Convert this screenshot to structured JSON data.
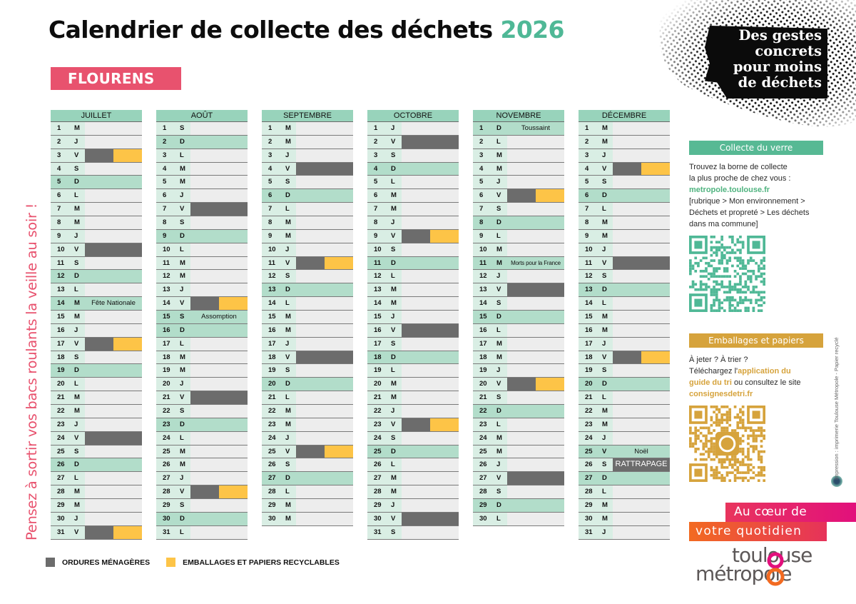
{
  "title": {
    "text": "Calendrier de collecte des déchets",
    "year": "2026"
  },
  "commune": "FLOURENS",
  "slogan": {
    "lines": [
      "Des gestes",
      "concrets",
      "pour moins",
      "de déchets"
    ]
  },
  "reminder": "Pensez à sortir vos bacs roulants la veille au soir !",
  "colors": {
    "ordures": "#6c6c6c",
    "emballages": "#fdc447",
    "accent": "#4fb896",
    "pink": "#e8526e",
    "header": "#98d3bb"
  },
  "legend": {
    "ordures": "ORDURES MÉNAGÈRES",
    "emballages": "EMBALLAGES ET PAPIERS RECYCLABLES"
  },
  "months": [
    {
      "name": "JUILLET",
      "days": [
        {
          "d": "1",
          "w": "M"
        },
        {
          "d": "2",
          "w": "J"
        },
        {
          "d": "3",
          "w": "V",
          "c": "both"
        },
        {
          "d": "4",
          "w": "S"
        },
        {
          "d": "5",
          "w": "D"
        },
        {
          "d": "6",
          "w": "L"
        },
        {
          "d": "7",
          "w": "M"
        },
        {
          "d": "8",
          "w": "M"
        },
        {
          "d": "9",
          "w": "J"
        },
        {
          "d": "10",
          "w": "V",
          "c": "om"
        },
        {
          "d": "11",
          "w": "S"
        },
        {
          "d": "12",
          "w": "D"
        },
        {
          "d": "13",
          "w": "L"
        },
        {
          "d": "14",
          "w": "M",
          "h": "Fête Nationale"
        },
        {
          "d": "15",
          "w": "M"
        },
        {
          "d": "16",
          "w": "J"
        },
        {
          "d": "17",
          "w": "V",
          "c": "both"
        },
        {
          "d": "18",
          "w": "S"
        },
        {
          "d": "19",
          "w": "D"
        },
        {
          "d": "20",
          "w": "L"
        },
        {
          "d": "21",
          "w": "M"
        },
        {
          "d": "22",
          "w": "M"
        },
        {
          "d": "23",
          "w": "J"
        },
        {
          "d": "24",
          "w": "V",
          "c": "om"
        },
        {
          "d": "25",
          "w": "S"
        },
        {
          "d": "26",
          "w": "D"
        },
        {
          "d": "27",
          "w": "L"
        },
        {
          "d": "28",
          "w": "M"
        },
        {
          "d": "29",
          "w": "M"
        },
        {
          "d": "30",
          "w": "J"
        },
        {
          "d": "31",
          "w": "V",
          "c": "both"
        }
      ]
    },
    {
      "name": "AOÛT",
      "days": [
        {
          "d": "1",
          "w": "S"
        },
        {
          "d": "2",
          "w": "D"
        },
        {
          "d": "3",
          "w": "L"
        },
        {
          "d": "4",
          "w": "M"
        },
        {
          "d": "5",
          "w": "M"
        },
        {
          "d": "6",
          "w": "J"
        },
        {
          "d": "7",
          "w": "V",
          "c": "om"
        },
        {
          "d": "8",
          "w": "S"
        },
        {
          "d": "9",
          "w": "D"
        },
        {
          "d": "10",
          "w": "L"
        },
        {
          "d": "11",
          "w": "M"
        },
        {
          "d": "12",
          "w": "M"
        },
        {
          "d": "13",
          "w": "J"
        },
        {
          "d": "14",
          "w": "V",
          "c": "both"
        },
        {
          "d": "15",
          "w": "S",
          "h": "Assomption"
        },
        {
          "d": "16",
          "w": "D"
        },
        {
          "d": "17",
          "w": "L"
        },
        {
          "d": "18",
          "w": "M"
        },
        {
          "d": "19",
          "w": "M"
        },
        {
          "d": "20",
          "w": "J"
        },
        {
          "d": "21",
          "w": "V",
          "c": "om"
        },
        {
          "d": "22",
          "w": "S"
        },
        {
          "d": "23",
          "w": "D"
        },
        {
          "d": "24",
          "w": "L"
        },
        {
          "d": "25",
          "w": "M"
        },
        {
          "d": "26",
          "w": "M"
        },
        {
          "d": "27",
          "w": "J"
        },
        {
          "d": "28",
          "w": "V",
          "c": "both"
        },
        {
          "d": "29",
          "w": "S"
        },
        {
          "d": "30",
          "w": "D"
        },
        {
          "d": "31",
          "w": "L"
        }
      ]
    },
    {
      "name": "SEPTEMBRE",
      "days": [
        {
          "d": "1",
          "w": "M"
        },
        {
          "d": "2",
          "w": "M"
        },
        {
          "d": "3",
          "w": "J"
        },
        {
          "d": "4",
          "w": "V",
          "c": "om"
        },
        {
          "d": "5",
          "w": "S"
        },
        {
          "d": "6",
          "w": "D"
        },
        {
          "d": "7",
          "w": "L"
        },
        {
          "d": "8",
          "w": "M"
        },
        {
          "d": "9",
          "w": "M"
        },
        {
          "d": "10",
          "w": "J"
        },
        {
          "d": "11",
          "w": "V",
          "c": "both"
        },
        {
          "d": "12",
          "w": "S"
        },
        {
          "d": "13",
          "w": "D"
        },
        {
          "d": "14",
          "w": "L"
        },
        {
          "d": "15",
          "w": "M"
        },
        {
          "d": "16",
          "w": "M"
        },
        {
          "d": "17",
          "w": "J"
        },
        {
          "d": "18",
          "w": "V",
          "c": "om"
        },
        {
          "d": "19",
          "w": "S"
        },
        {
          "d": "20",
          "w": "D"
        },
        {
          "d": "21",
          "w": "L"
        },
        {
          "d": "22",
          "w": "M"
        },
        {
          "d": "23",
          "w": "M"
        },
        {
          "d": "24",
          "w": "J"
        },
        {
          "d": "25",
          "w": "V",
          "c": "both"
        },
        {
          "d": "26",
          "w": "S"
        },
        {
          "d": "27",
          "w": "D"
        },
        {
          "d": "28",
          "w": "L"
        },
        {
          "d": "29",
          "w": "M"
        },
        {
          "d": "30",
          "w": "M"
        }
      ]
    },
    {
      "name": "OCTOBRE",
      "days": [
        {
          "d": "1",
          "w": "J"
        },
        {
          "d": "2",
          "w": "V",
          "c": "om"
        },
        {
          "d": "3",
          "w": "S"
        },
        {
          "d": "4",
          "w": "D"
        },
        {
          "d": "5",
          "w": "L"
        },
        {
          "d": "6",
          "w": "M"
        },
        {
          "d": "7",
          "w": "M"
        },
        {
          "d": "8",
          "w": "J"
        },
        {
          "d": "9",
          "w": "V",
          "c": "both"
        },
        {
          "d": "10",
          "w": "S"
        },
        {
          "d": "11",
          "w": "D"
        },
        {
          "d": "12",
          "w": "L"
        },
        {
          "d": "13",
          "w": "M"
        },
        {
          "d": "14",
          "w": "M"
        },
        {
          "d": "15",
          "w": "J"
        },
        {
          "d": "16",
          "w": "V",
          "c": "om"
        },
        {
          "d": "17",
          "w": "S"
        },
        {
          "d": "18",
          "w": "D"
        },
        {
          "d": "19",
          "w": "L"
        },
        {
          "d": "20",
          "w": "M"
        },
        {
          "d": "21",
          "w": "M"
        },
        {
          "d": "22",
          "w": "J"
        },
        {
          "d": "23",
          "w": "V",
          "c": "both"
        },
        {
          "d": "24",
          "w": "S"
        },
        {
          "d": "25",
          "w": "D"
        },
        {
          "d": "26",
          "w": "L"
        },
        {
          "d": "27",
          "w": "M"
        },
        {
          "d": "28",
          "w": "M"
        },
        {
          "d": "29",
          "w": "J"
        },
        {
          "d": "30",
          "w": "V",
          "c": "om"
        },
        {
          "d": "31",
          "w": "S"
        }
      ]
    },
    {
      "name": "NOVEMBRE",
      "days": [
        {
          "d": "1",
          "w": "D",
          "h": "Toussaint"
        },
        {
          "d": "2",
          "w": "L"
        },
        {
          "d": "3",
          "w": "M"
        },
        {
          "d": "4",
          "w": "M"
        },
        {
          "d": "5",
          "w": "J"
        },
        {
          "d": "6",
          "w": "V",
          "c": "both"
        },
        {
          "d": "7",
          "w": "S"
        },
        {
          "d": "8",
          "w": "D"
        },
        {
          "d": "9",
          "w": "L"
        },
        {
          "d": "10",
          "w": "M"
        },
        {
          "d": "11",
          "w": "M",
          "h": "Morts pour la France",
          "small": true
        },
        {
          "d": "12",
          "w": "J"
        },
        {
          "d": "13",
          "w": "V",
          "c": "om"
        },
        {
          "d": "14",
          "w": "S"
        },
        {
          "d": "15",
          "w": "D"
        },
        {
          "d": "16",
          "w": "L"
        },
        {
          "d": "17",
          "w": "M"
        },
        {
          "d": "18",
          "w": "M"
        },
        {
          "d": "19",
          "w": "J"
        },
        {
          "d": "20",
          "w": "V",
          "c": "both"
        },
        {
          "d": "21",
          "w": "S"
        },
        {
          "d": "22",
          "w": "D"
        },
        {
          "d": "23",
          "w": "L"
        },
        {
          "d": "24",
          "w": "M"
        },
        {
          "d": "25",
          "w": "M"
        },
        {
          "d": "26",
          "w": "J"
        },
        {
          "d": "27",
          "w": "V",
          "c": "om"
        },
        {
          "d": "28",
          "w": "S"
        },
        {
          "d": "29",
          "w": "D"
        },
        {
          "d": "30",
          "w": "L"
        }
      ]
    },
    {
      "name": "DÉCEMBRE",
      "days": [
        {
          "d": "1",
          "w": "M"
        },
        {
          "d": "2",
          "w": "M"
        },
        {
          "d": "3",
          "w": "J"
        },
        {
          "d": "4",
          "w": "V",
          "c": "both"
        },
        {
          "d": "5",
          "w": "S"
        },
        {
          "d": "6",
          "w": "D"
        },
        {
          "d": "7",
          "w": "L"
        },
        {
          "d": "8",
          "w": "M"
        },
        {
          "d": "9",
          "w": "M"
        },
        {
          "d": "10",
          "w": "J"
        },
        {
          "d": "11",
          "w": "V",
          "c": "om"
        },
        {
          "d": "12",
          "w": "S"
        },
        {
          "d": "13",
          "w": "D"
        },
        {
          "d": "14",
          "w": "L"
        },
        {
          "d": "15",
          "w": "M"
        },
        {
          "d": "16",
          "w": "M"
        },
        {
          "d": "17",
          "w": "J"
        },
        {
          "d": "18",
          "w": "V",
          "c": "both"
        },
        {
          "d": "19",
          "w": "S"
        },
        {
          "d": "20",
          "w": "D"
        },
        {
          "d": "21",
          "w": "L"
        },
        {
          "d": "22",
          "w": "M"
        },
        {
          "d": "23",
          "w": "M"
        },
        {
          "d": "24",
          "w": "J"
        },
        {
          "d": "25",
          "w": "V",
          "h": "Noël"
        },
        {
          "d": "26",
          "w": "S",
          "r": "RATTRAPAGE"
        },
        {
          "d": "27",
          "w": "D"
        },
        {
          "d": "28",
          "w": "L"
        },
        {
          "d": "29",
          "w": "M"
        },
        {
          "d": "30",
          "w": "M"
        },
        {
          "d": "31",
          "w": "J"
        }
      ]
    }
  ],
  "verre": {
    "title": "Collecte du verre",
    "line1": "Trouvez la borne de collecte",
    "line2": "la plus proche de chez vous :",
    "link": "metropole.toulouse.fr",
    "line3": "[rubrique > Mon environnement >",
    "line4": "Déchets et propreté > Les déchets",
    "line5": "dans ma commune]"
  },
  "emballages": {
    "title": "Emballages et papiers",
    "line1": "À jeter ? À trier ?",
    "line2a": "Téléchargez l'",
    "line2b": "application du",
    "line3a": "guide du tri",
    "line3b": " ou consultez le site",
    "link": "consignesdetri.fr"
  },
  "credit": "Impression : imprimerie Toulouse Métropole - Papier recyclé",
  "tagline": {
    "line1": "Au cœur de",
    "line2": "votre quotidien"
  },
  "logo": {
    "line1": "toulouse",
    "line2": "métropole"
  }
}
